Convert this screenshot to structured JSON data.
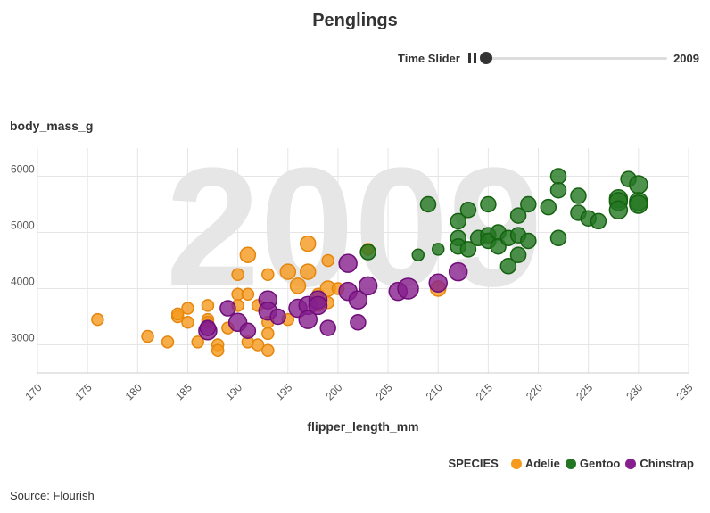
{
  "title": "Penglings",
  "slider": {
    "label": "Time Slider",
    "value": "2009",
    "position": 0
  },
  "axes": {
    "ylabel": "body_mass_g",
    "xlabel": "flipper_length_mm"
  },
  "legend": {
    "title": "SPECIES"
  },
  "source": {
    "label": "Source:",
    "link_text": "Flourish"
  },
  "chart_data": {
    "type": "scatter",
    "watermark": "2009",
    "xlim": [
      170,
      235
    ],
    "ylim": [
      2500,
      6500
    ],
    "x_ticks": [
      "170",
      "175",
      "180",
      "185",
      "190",
      "195",
      "200",
      "205",
      "210",
      "215",
      "220",
      "225",
      "230",
      "235"
    ],
    "y_ticks": [
      "3000",
      "4000",
      "5000",
      "6000"
    ],
    "grid": true,
    "legend_position": "bottom-right",
    "series": [
      {
        "name": "Adelie",
        "color": "#f59a1d",
        "stroke": "#e5850b",
        "points": [
          [
            176,
            3450,
            1
          ],
          [
            181,
            3150,
            1
          ],
          [
            183,
            3050,
            1
          ],
          [
            184,
            3500,
            1
          ],
          [
            184,
            3550,
            1
          ],
          [
            185,
            3650,
            1
          ],
          [
            185,
            3400,
            1
          ],
          [
            186,
            3050,
            1
          ],
          [
            187,
            3700,
            1
          ],
          [
            187,
            3450,
            1
          ],
          [
            187,
            3400,
            1
          ],
          [
            188,
            3000,
            1
          ],
          [
            188,
            2900,
            1
          ],
          [
            189,
            3300,
            1
          ],
          [
            190,
            4250,
            1
          ],
          [
            190,
            3900,
            1
          ],
          [
            190,
            3700,
            1
          ],
          [
            191,
            4600,
            2
          ],
          [
            191,
            3900,
            1
          ],
          [
            191,
            3050,
            1
          ],
          [
            192,
            3700,
            1
          ],
          [
            192,
            3000,
            1
          ],
          [
            193,
            4250,
            1
          ],
          [
            193,
            3400,
            1
          ],
          [
            193,
            3200,
            1
          ],
          [
            193,
            2900,
            1
          ],
          [
            195,
            4300,
            2
          ],
          [
            195,
            3450,
            1
          ],
          [
            196,
            4050,
            2
          ],
          [
            197,
            4800,
            2
          ],
          [
            197,
            4300,
            2
          ],
          [
            198,
            3900,
            1
          ],
          [
            198,
            3700,
            1
          ],
          [
            199,
            4500,
            1
          ],
          [
            199,
            4000,
            2
          ],
          [
            199,
            3750,
            1
          ],
          [
            200,
            4000,
            1
          ],
          [
            203,
            4700,
            1
          ],
          [
            210,
            4000,
            2
          ]
        ]
      },
      {
        "name": "Gentoo",
        "color": "#237722",
        "stroke": "#14620f",
        "points": [
          [
            203,
            4650,
            2
          ],
          [
            208,
            4600,
            1
          ],
          [
            209,
            5500,
            2
          ],
          [
            210,
            4700,
            1
          ],
          [
            212,
            5200,
            2
          ],
          [
            212,
            4900,
            2
          ],
          [
            212,
            4750,
            2
          ],
          [
            213,
            5400,
            2
          ],
          [
            213,
            4700,
            2
          ],
          [
            214,
            4900,
            2
          ],
          [
            215,
            5500,
            2
          ],
          [
            215,
            4950,
            2
          ],
          [
            215,
            4850,
            2
          ],
          [
            216,
            5000,
            2
          ],
          [
            216,
            4750,
            2
          ],
          [
            217,
            4900,
            2
          ],
          [
            217,
            4400,
            2
          ],
          [
            218,
            5300,
            2
          ],
          [
            218,
            4950,
            2
          ],
          [
            218,
            4600,
            2
          ],
          [
            219,
            5500,
            2
          ],
          [
            219,
            4850,
            2
          ],
          [
            221,
            5450,
            2
          ],
          [
            222,
            6000,
            2
          ],
          [
            222,
            5750,
            2
          ],
          [
            222,
            4900,
            2
          ],
          [
            224,
            5650,
            2
          ],
          [
            224,
            5350,
            2
          ],
          [
            225,
            5250,
            2
          ],
          [
            226,
            5200,
            2
          ],
          [
            228,
            5600,
            3
          ],
          [
            228,
            5550,
            3
          ],
          [
            228,
            5400,
            3
          ],
          [
            229,
            5950,
            2
          ],
          [
            230,
            5850,
            3
          ],
          [
            230,
            5550,
            3
          ],
          [
            230,
            5500,
            3
          ]
        ]
      },
      {
        "name": "Chinstrap",
        "color": "#861f8d",
        "stroke": "#6f0e78",
        "points": [
          [
            187,
            3250,
            3
          ],
          [
            187,
            3300,
            2
          ],
          [
            189,
            3650,
            2
          ],
          [
            190,
            3400,
            3
          ],
          [
            191,
            3250,
            2
          ],
          [
            193,
            3800,
            3
          ],
          [
            193,
            3600,
            3
          ],
          [
            194,
            3500,
            2
          ],
          [
            196,
            3650,
            3
          ],
          [
            197,
            3700,
            3
          ],
          [
            197,
            3450,
            3
          ],
          [
            198,
            3800,
            3
          ],
          [
            198,
            3700,
            3
          ],
          [
            199,
            3300,
            2
          ],
          [
            201,
            4450,
            3
          ],
          [
            201,
            3950,
            3
          ],
          [
            202,
            3800,
            3
          ],
          [
            202,
            3400,
            2
          ],
          [
            203,
            4050,
            3
          ],
          [
            206,
            3950,
            3
          ],
          [
            207,
            4000,
            4
          ],
          [
            210,
            4100,
            3
          ],
          [
            212,
            4300,
            3
          ]
        ]
      }
    ]
  }
}
